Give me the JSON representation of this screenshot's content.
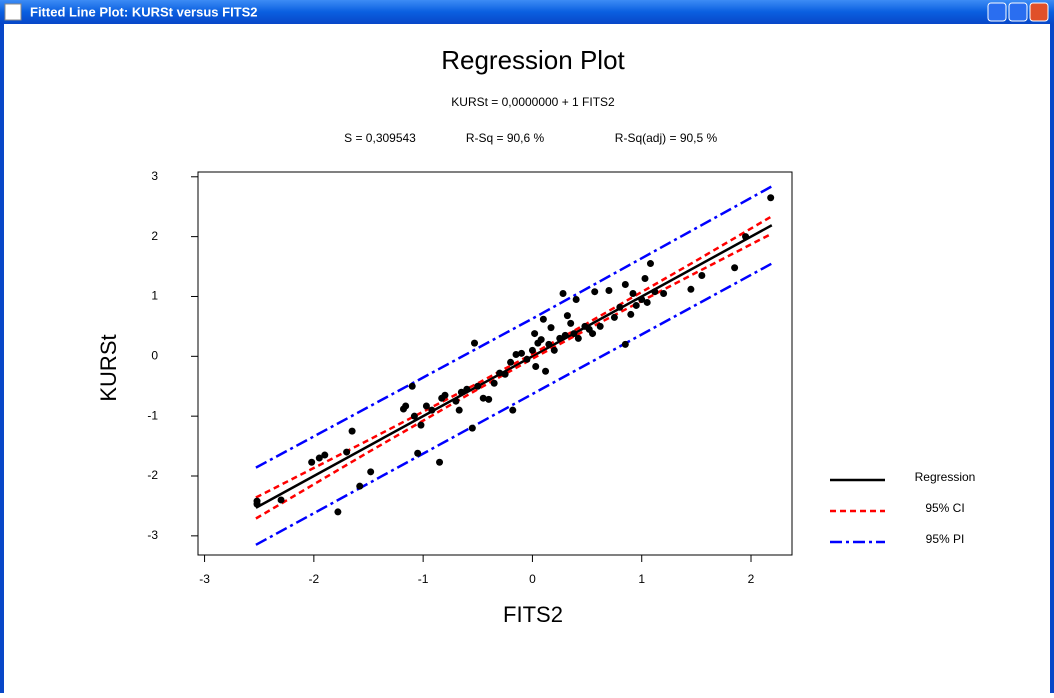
{
  "window": {
    "title": "Fitted Line Plot: KURSt versus FITS2"
  },
  "chart_data": {
    "type": "scatter",
    "title": "Regression Plot",
    "equation": "KURSt = 0,0000000 + 1 FITS2",
    "stats": [
      "S = 0,309543",
      "R-Sq = 90,6 %",
      "R-Sq(adj) = 90,5 %"
    ],
    "x_label": "FITS2",
    "y_label": "KURSt",
    "xlim": [
      -3.06,
      2.375
    ],
    "ylim": [
      -3.32,
      3.08
    ],
    "xticks": [
      -3,
      -2,
      -1,
      0,
      1,
      2
    ],
    "yticks": [
      -3,
      -2,
      -1,
      0,
      1,
      2,
      3
    ],
    "legend": "right",
    "scatter": {
      "color": "#000000",
      "x": [
        -2.52,
        -2.52,
        -2.3,
        -2.02,
        -1.95,
        -1.9,
        -1.78,
        -1.7,
        -1.65,
        -1.58,
        -1.48,
        -1.18,
        -1.16,
        -1.1,
        -1.08,
        -1.05,
        -1.02,
        -0.97,
        -0.92,
        -0.85,
        -0.83,
        -0.8,
        -0.7,
        -0.67,
        -0.65,
        -0.6,
        -0.55,
        -0.53,
        -0.5,
        -0.45,
        -0.4,
        -0.35,
        -0.3,
        -0.25,
        -0.2,
        -0.18,
        -0.15,
        -0.1,
        -0.05,
        0,
        0.02,
        0.03,
        0.05,
        0.08,
        0.1,
        0.12,
        0.15,
        0.17,
        0.2,
        0.25,
        0.28,
        0.3,
        0.32,
        0.35,
        0.38,
        0.4,
        0.42,
        0.48,
        0.52,
        0.55,
        0.57,
        0.62,
        0.7,
        0.75,
        0.8,
        0.85,
        0.85,
        0.9,
        0.92,
        0.95,
        1.0,
        1.03,
        1.05,
        1.08,
        1.12,
        1.2,
        1.45,
        1.55,
        1.85,
        1.95,
        2.18
      ],
      "values": [
        -2.42,
        -2.47,
        -2.4,
        -1.77,
        -1.7,
        -1.65,
        -2.6,
        -1.6,
        -1.25,
        -2.17,
        -1.93,
        -0.88,
        -0.83,
        -0.5,
        -1.0,
        -1.62,
        -1.15,
        -0.83,
        -0.9,
        -1.77,
        -0.7,
        -0.65,
        -0.75,
        -0.9,
        -0.6,
        -0.55,
        -1.2,
        0.22,
        -0.5,
        -0.7,
        -0.72,
        -0.45,
        -0.28,
        -0.3,
        -0.1,
        -0.9,
        0.03,
        0.05,
        -0.05,
        0.1,
        0.38,
        -0.17,
        0.22,
        0.28,
        0.62,
        -0.25,
        0.2,
        0.48,
        0.1,
        0.3,
        1.05,
        0.35,
        0.68,
        0.55,
        0.38,
        0.95,
        0.3,
        0.5,
        0.45,
        0.38,
        1.08,
        0.5,
        1.1,
        0.65,
        0.82,
        1.2,
        0.2,
        0.7,
        1.05,
        0.85,
        0.95,
        1.3,
        0.9,
        1.55,
        1.08,
        1.05,
        1.12,
        1.35,
        1.48,
        2.0,
        2.65
      ]
    },
    "series": [
      {
        "name": "Regression",
        "color": "#000000",
        "style": "solid",
        "x": [
          -2.53,
          2.19
        ],
        "values": [
          -2.53,
          2.19
        ]
      },
      {
        "name": "95% CI",
        "color": "#ff0000",
        "style": "dashed",
        "x": [
          -2.53,
          -1.5,
          -0.5,
          0,
          0.5,
          1.5,
          2.19
        ],
        "values": [
          -2.36,
          -1.4,
          -0.45,
          0.04,
          0.55,
          1.6,
          2.34
        ]
      },
      {
        "color": "#ff0000",
        "style": "dashed",
        "x": [
          -2.53,
          -1.5,
          -0.5,
          0,
          0.5,
          1.5,
          2.19
        ],
        "values": [
          -2.71,
          -1.6,
          -0.55,
          -0.04,
          0.45,
          1.4,
          2.05
        ]
      },
      {
        "name": "95% PI",
        "color": "#0000ff",
        "style": "dashdot",
        "x": [
          -2.53,
          0,
          2.19
        ],
        "values": [
          -1.86,
          0.63,
          2.84
        ]
      },
      {
        "color": "#0000ff",
        "style": "dashdot",
        "x": [
          -2.53,
          0,
          2.19
        ],
        "values": [
          -3.15,
          -0.63,
          1.55
        ]
      }
    ]
  }
}
